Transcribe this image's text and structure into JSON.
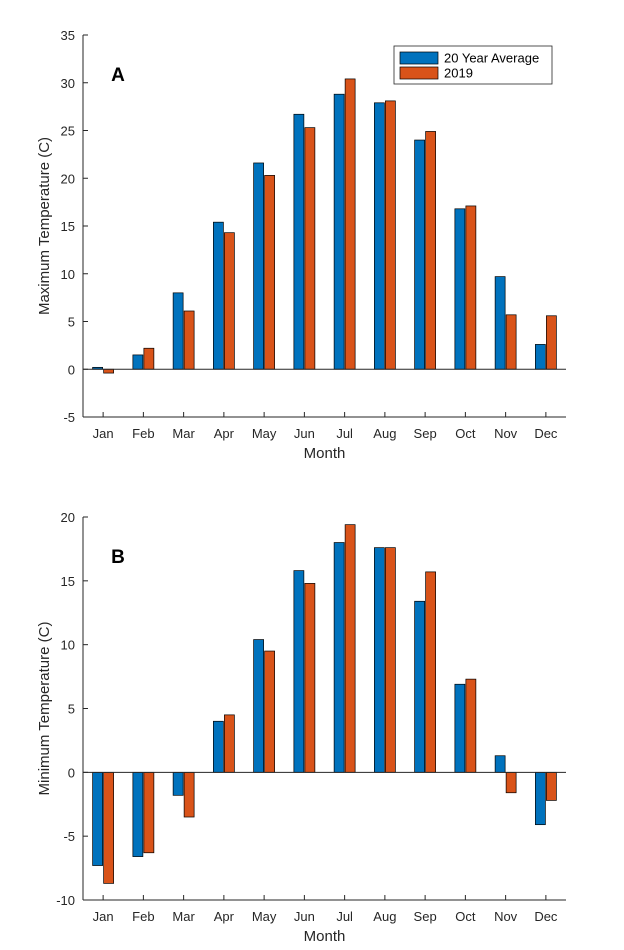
{
  "chart_data": [
    {
      "type": "bar",
      "panel_label": "A",
      "categories": [
        "Jan",
        "Feb",
        "Mar",
        "Apr",
        "May",
        "Jun",
        "Jul",
        "Aug",
        "Sep",
        "Oct",
        "Nov",
        "Dec"
      ],
      "series": [
        {
          "name": "20 Year Average",
          "color": "#0072BD",
          "values": [
            0.2,
            1.5,
            8.0,
            15.4,
            21.6,
            26.7,
            28.8,
            27.9,
            24.0,
            16.8,
            9.7,
            2.6
          ]
        },
        {
          "name": "2019",
          "color": "#D95319",
          "values": [
            -0.4,
            2.2,
            6.1,
            14.3,
            20.3,
            25.3,
            30.4,
            28.1,
            24.9,
            17.1,
            5.7,
            5.6
          ]
        }
      ],
      "xlabel": "Month",
      "ylabel": "Maximum Temperature (C)",
      "ylim": [
        -5,
        35
      ],
      "yticks": [
        -5,
        0,
        5,
        10,
        15,
        20,
        25,
        30,
        35
      ],
      "legend_position": "top-right",
      "grid": false
    },
    {
      "type": "bar",
      "panel_label": "B",
      "categories": [
        "Jan",
        "Feb",
        "Mar",
        "Apr",
        "May",
        "Jun",
        "Jul",
        "Aug",
        "Sep",
        "Oct",
        "Nov",
        "Dec"
      ],
      "series": [
        {
          "name": "20 Year Average",
          "color": "#0072BD",
          "values": [
            -7.3,
            -6.6,
            -1.8,
            4.0,
            10.4,
            15.8,
            18.0,
            17.6,
            13.4,
            6.9,
            1.3,
            -4.1
          ]
        },
        {
          "name": "2019",
          "color": "#D95319",
          "values": [
            -8.7,
            -6.3,
            -3.5,
            4.5,
            9.5,
            14.8,
            19.4,
            17.6,
            15.7,
            7.3,
            -1.6,
            -2.2
          ]
        }
      ],
      "xlabel": "Month",
      "ylabel": "Minimum Temperature (C)",
      "ylim": [
        -10,
        20
      ],
      "yticks": [
        -10,
        -5,
        0,
        5,
        10,
        15,
        20
      ],
      "grid": false
    }
  ]
}
